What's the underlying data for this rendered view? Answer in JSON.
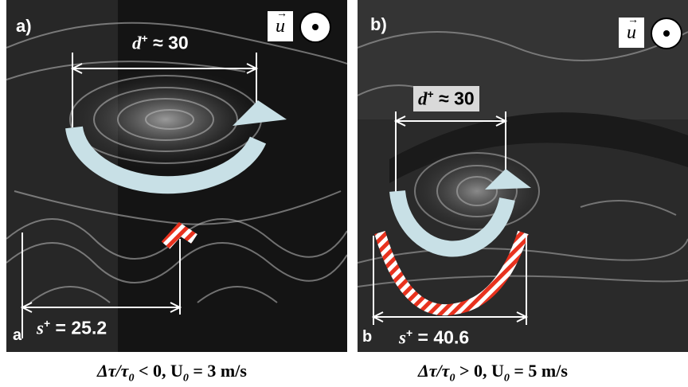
{
  "panels": [
    {
      "label": "a)",
      "corner_label": "a",
      "vector_symbol": "u",
      "d_measure": {
        "symbol": "d",
        "sup": "+",
        "rel": "≈",
        "value": "30"
      },
      "s_measure": {
        "symbol": "s",
        "sup": "+",
        "rel": "=",
        "value": "25.2"
      },
      "caption": {
        "prefix": "Δτ/τ",
        "sub0": "0",
        "cond": " < 0, U",
        "sub1": "0",
        "value": " = 3 m/s"
      }
    },
    {
      "label": "b)",
      "corner_label": "b",
      "vector_symbol": "u",
      "d_measure": {
        "symbol": "d",
        "sup": "+",
        "rel": "≈",
        "value": "30"
      },
      "s_measure": {
        "symbol": "s",
        "sup": "+",
        "rel": "=",
        "value": "40.6"
      },
      "caption": {
        "prefix": "Δτ/τ",
        "sub0": "0",
        "cond": " > 0, U",
        "sub1": "0",
        "value": " = 5 m/s"
      }
    }
  ],
  "colors": {
    "arrow": "#c8e0e6",
    "stripe_red": "#e8321e",
    "stripe_white": "#ffffff",
    "bg_dark": "#121212"
  }
}
